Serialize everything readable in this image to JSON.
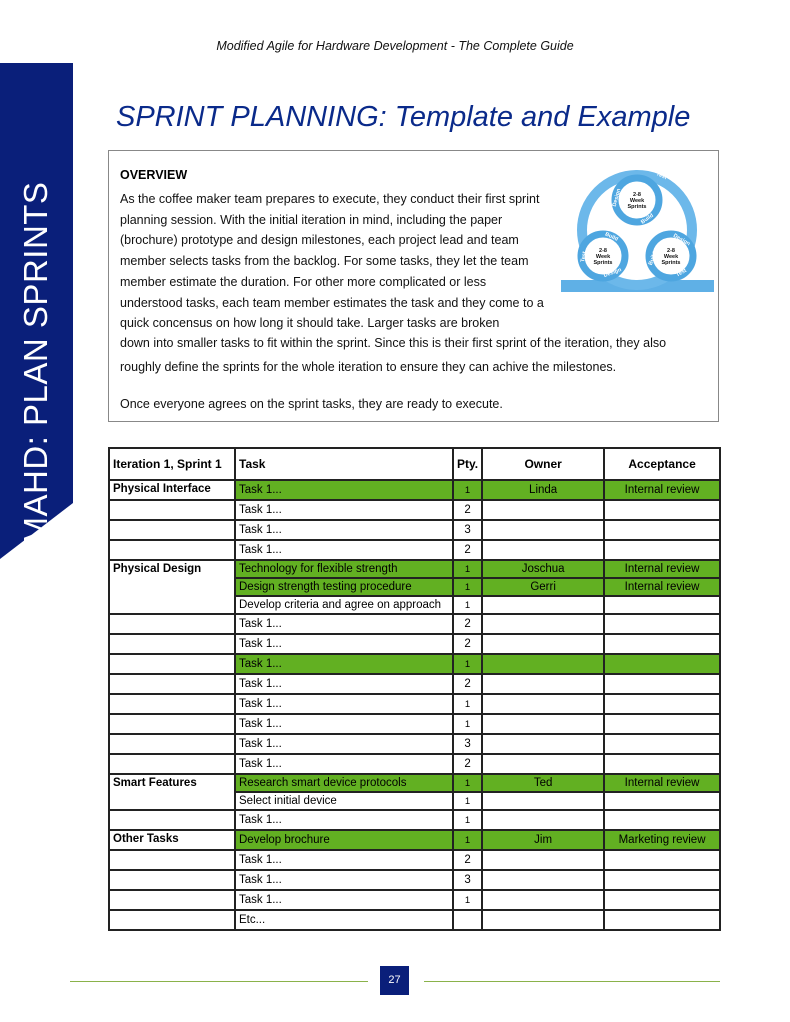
{
  "header": "Modified Agile for Hardware Development - The Complete Guide",
  "banner": "MAHD: PLAN SPRINTS",
  "title": "SPRINT PLANNING: Template and Example",
  "overview": {
    "heading": "OVERVIEW",
    "para1": "As the coffee maker team prepares to execute, they conduct their first sprint planning session. With the initial iteration in mind, including the paper (brochure) prototype and design milestones, each project lead and team member selects tasks from the backlog. For some tasks, they let the team member estimate the duration. For other more complicated or less understood tasks, each team member estimates the task and they come to a quick concensus on how long it should take. Larger tasks are broken",
    "para2": "down into smaller tasks to fit within the sprint. Since this is their first sprint of the iteration, they also roughly define the sprints for the whole iteration to ensure they can achive the milestones.",
    "para3": "Once everyone agrees on the sprint tasks, they are ready to execute.",
    "diagram": {
      "center_label": [
        "2-8",
        "Week",
        "Sprints"
      ],
      "phases": [
        "Design",
        "Build",
        "Test"
      ]
    }
  },
  "table": {
    "headers": [
      "Iteration 1, Sprint 1",
      "Task",
      "Pty.",
      "Owner",
      "Acceptance"
    ],
    "highlight_color": "#62b022",
    "rows": [
      {
        "section": "Physical Interface",
        "task": "Task 1...",
        "pty": "1",
        "owner": "Linda",
        "acceptance": "Internal review",
        "hl": true
      },
      {
        "section": "",
        "task": "Task 1...",
        "pty": "2",
        "owner": "",
        "acceptance": ""
      },
      {
        "section": "",
        "task": "Task 1...",
        "pty": "3",
        "owner": "",
        "acceptance": ""
      },
      {
        "section": "",
        "task": "Task 1...",
        "pty": "2",
        "owner": "",
        "acceptance": ""
      },
      {
        "section": "Physical Design",
        "span": 3,
        "task": "Technology for flexible strength",
        "pty": "1",
        "owner": "Joschua",
        "acceptance": "Internal review",
        "hl": true
      },
      {
        "task": "Design strength testing procedure",
        "pty": "1",
        "owner": "Gerri",
        "acceptance": "Internal review",
        "hl": true
      },
      {
        "task": "Develop criteria and agree on approach",
        "pty": "1",
        "owner": "",
        "acceptance": ""
      },
      {
        "section": "",
        "task": "Task 1...",
        "pty": "2",
        "owner": "",
        "acceptance": ""
      },
      {
        "section": "",
        "task": "Task 1...",
        "pty": "2",
        "owner": "",
        "acceptance": ""
      },
      {
        "section": "",
        "task": "Task 1...",
        "pty": "1",
        "owner": "",
        "acceptance": "",
        "hl": true
      },
      {
        "section": "",
        "task": "Task 1...",
        "pty": "2",
        "owner": "",
        "acceptance": ""
      },
      {
        "section": "",
        "task": "Task 1...",
        "pty": "1",
        "owner": "",
        "acceptance": ""
      },
      {
        "section": "",
        "task": "Task 1...",
        "pty": "1",
        "owner": "",
        "acceptance": ""
      },
      {
        "section": "",
        "task": "Task 1...",
        "pty": "3",
        "owner": "",
        "acceptance": ""
      },
      {
        "section": "",
        "task": "Task 1...",
        "pty": "2",
        "owner": "",
        "acceptance": ""
      },
      {
        "section": "Smart Features",
        "span": 2,
        "task": "Research smart device protocols",
        "pty": "1",
        "owner": "Ted",
        "acceptance": "Internal review",
        "hl": true
      },
      {
        "task": "Select initial device",
        "pty": "1",
        "owner": "",
        "acceptance": ""
      },
      {
        "section": "",
        "task": "Task 1...",
        "pty": "1",
        "owner": "",
        "acceptance": ""
      },
      {
        "section": "Other Tasks",
        "task": "Develop brochure",
        "pty": "1",
        "owner": "Jim",
        "acceptance": "Marketing review",
        "hl": true
      },
      {
        "section": "",
        "task": "Task 1...",
        "pty": "2",
        "owner": "",
        "acceptance": ""
      },
      {
        "section": "",
        "task": "Task 1...",
        "pty": "3",
        "owner": "",
        "acceptance": ""
      },
      {
        "section": "",
        "task": "Task 1...",
        "pty": "1",
        "owner": "",
        "acceptance": ""
      },
      {
        "section": "",
        "task": "Etc...",
        "pty": "",
        "owner": "",
        "acceptance": ""
      }
    ]
  },
  "page_number": "27"
}
